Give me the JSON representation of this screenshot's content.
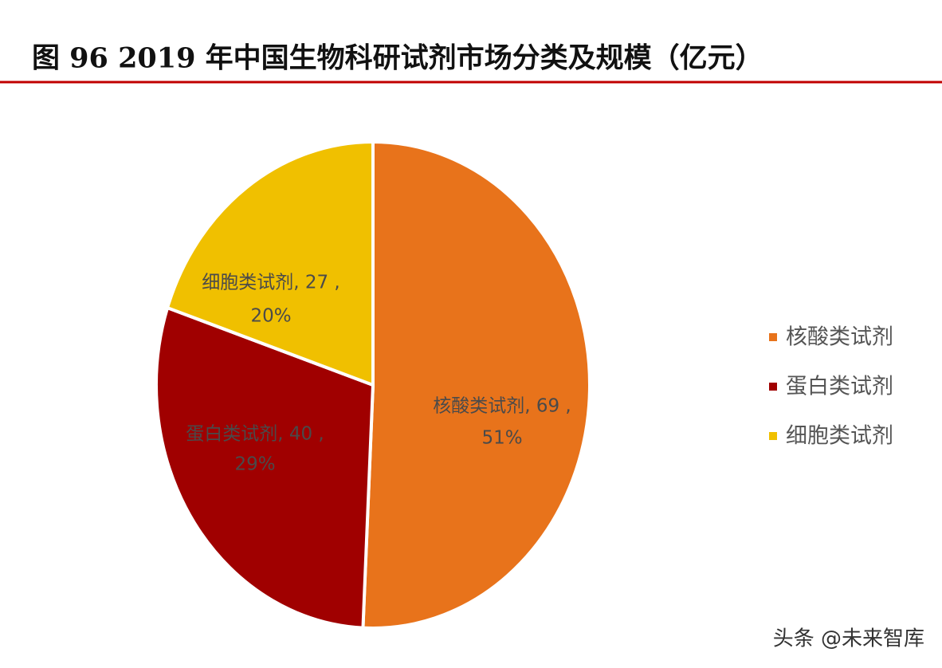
{
  "chart_data": {
    "type": "pie",
    "title": "图 96 2019 年中国生物科研试剂市场分类及规模（亿元）",
    "categories": [
      "核酸类试剂",
      "蛋白类试剂",
      "细胞类试剂"
    ],
    "values": [
      69,
      40,
      27
    ],
    "value_labels": [
      "核酸类试剂, 69 ,",
      "蛋白类试剂, 40 ,",
      "细胞类试剂, 27 ,"
    ],
    "percents": [
      51,
      29,
      20
    ],
    "percent_labels": [
      "51%",
      "29%",
      "20%"
    ],
    "colors": [
      "#e8731b",
      "#a00000",
      "#f0c000"
    ],
    "legend": "right"
  },
  "watermark": "头条 @未来智库"
}
